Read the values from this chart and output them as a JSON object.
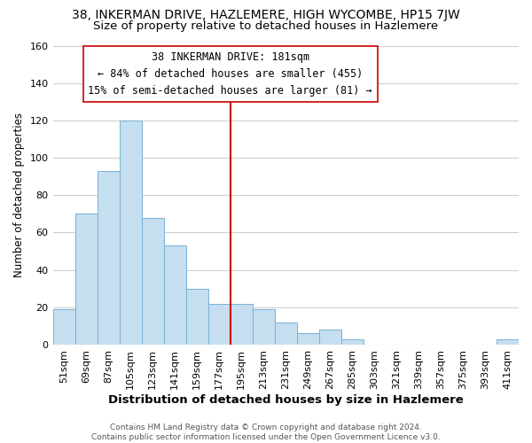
{
  "title": "38, INKERMAN DRIVE, HAZLEMERE, HIGH WYCOMBE, HP15 7JW",
  "subtitle": "Size of property relative to detached houses in Hazlemere",
  "xlabel": "Distribution of detached houses by size in Hazlemere",
  "ylabel": "Number of detached properties",
  "bar_labels": [
    "51sqm",
    "69sqm",
    "87sqm",
    "105sqm",
    "123sqm",
    "141sqm",
    "159sqm",
    "177sqm",
    "195sqm",
    "213sqm",
    "231sqm",
    "249sqm",
    "267sqm",
    "285sqm",
    "303sqm",
    "321sqm",
    "339sqm",
    "357sqm",
    "375sqm",
    "393sqm",
    "411sqm"
  ],
  "bar_values": [
    19,
    70,
    93,
    120,
    68,
    53,
    30,
    22,
    22,
    19,
    12,
    6,
    8,
    3,
    0,
    0,
    0,
    0,
    0,
    0,
    3
  ],
  "bar_color": "#c5dff0",
  "bar_edge_color": "#7ab0d4",
  "vline_index": 7,
  "vline_color": "#cc0000",
  "annotation_line1": "38 INKERMAN DRIVE: 181sqm",
  "annotation_line2": "← 84% of detached houses are smaller (455)",
  "annotation_line3": "15% of semi-detached houses are larger (81) →",
  "annotation_box_color": "#ffffff",
  "annotation_box_edge": "#cc0000",
  "ylim": [
    0,
    160
  ],
  "yticks": [
    0,
    20,
    40,
    60,
    80,
    100,
    120,
    140,
    160
  ],
  "footer": "Contains HM Land Registry data © Crown copyright and database right 2024.\nContains public sector information licensed under the Open Government Licence v3.0.",
  "bg_color": "#ffffff",
  "grid_color": "#d0d0d0",
  "title_fontsize": 10,
  "subtitle_fontsize": 9.5,
  "xlabel_fontsize": 9.5,
  "ylabel_fontsize": 8.5,
  "tick_fontsize": 8,
  "annotation_fontsize": 8.5,
  "footer_fontsize": 6.5
}
